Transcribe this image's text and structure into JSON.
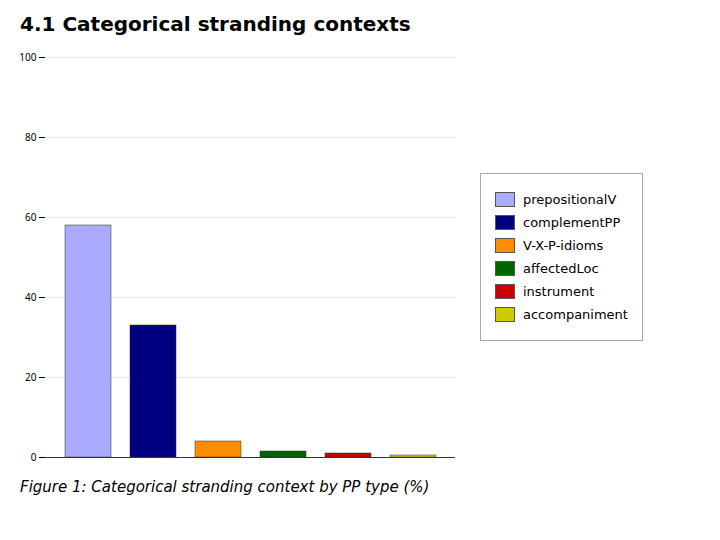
{
  "chart_data": {
    "type": "bar",
    "title": "4.1 Categorical stranding contexts",
    "caption": "Figure 1: Categorical stranding context by PP type (%)",
    "categories": [
      "prepositionalV",
      "complementPP",
      "V-X-P-idioms",
      "affectedLoc",
      "instrument",
      "accompaniment"
    ],
    "values": [
      58.0,
      33.0,
      4.0,
      1.5,
      1.0,
      0.5
    ],
    "colors": [
      "#aaaaff",
      "#000080",
      "#ff8c00",
      "#006400",
      "#cc0000",
      "#cccc00"
    ],
    "ylim": [
      0,
      100
    ],
    "yticks": [
      0,
      20,
      40,
      60,
      80,
      100
    ],
    "grid": true,
    "legend": "right",
    "tick_labels": "y"
  }
}
